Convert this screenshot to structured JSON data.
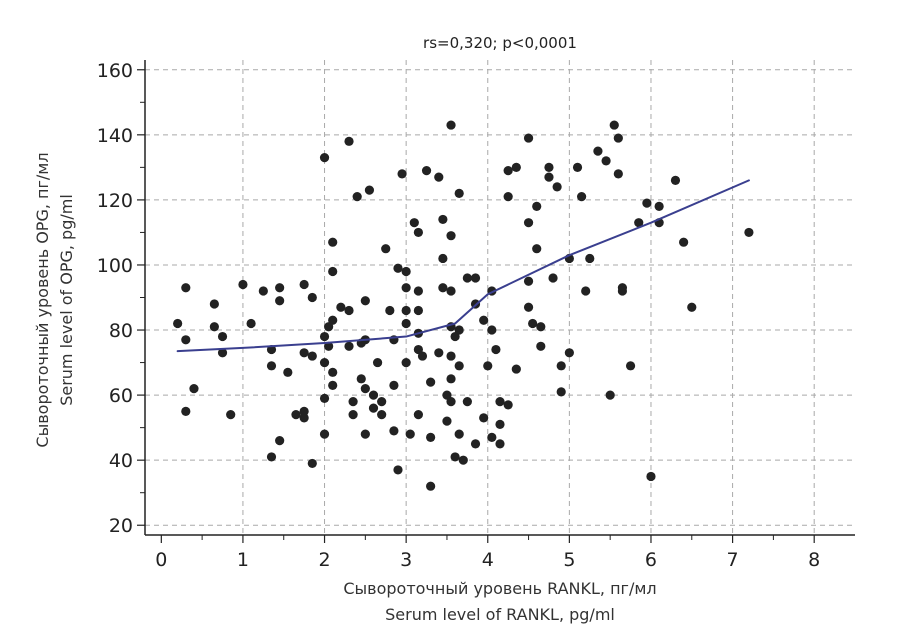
{
  "chart_data": {
    "type": "scatter",
    "title": "rs=0,320; p<0,0001",
    "xlabel_lines": [
      "Сывороточный уровень RANKL, пг/мл",
      "Serum level of RANKL, pg/ml"
    ],
    "ylabel_lines": [
      "Сывороточный уровень OPG, пг/мл",
      "Serum level of OPG, pg/ml"
    ],
    "xlim": [
      -0.2,
      8.5
    ],
    "ylim": [
      17,
      163
    ],
    "x_ticks": [
      0,
      1,
      2,
      3,
      4,
      5,
      6,
      7,
      8
    ],
    "y_ticks": [
      20,
      40,
      60,
      80,
      100,
      120,
      140,
      160
    ],
    "grid": true,
    "point_color": "#222222",
    "line_color": "#3a3f8f",
    "series": [
      {
        "kind": "points",
        "points": [
          [
            0.2,
            82
          ],
          [
            0.3,
            77
          ],
          [
            0.3,
            93
          ],
          [
            0.3,
            55
          ],
          [
            0.4,
            62
          ],
          [
            0.65,
            88
          ],
          [
            0.65,
            81
          ],
          [
            0.75,
            78
          ],
          [
            0.75,
            73
          ],
          [
            0.85,
            54
          ],
          [
            1.0,
            94
          ],
          [
            1.1,
            82
          ],
          [
            1.25,
            92
          ],
          [
            1.35,
            74
          ],
          [
            1.35,
            69
          ],
          [
            1.35,
            41
          ],
          [
            1.45,
            93
          ],
          [
            1.45,
            89
          ],
          [
            1.45,
            46
          ],
          [
            1.55,
            67
          ],
          [
            1.65,
            54
          ],
          [
            1.75,
            94
          ],
          [
            1.75,
            73
          ],
          [
            1.75,
            55
          ],
          [
            1.75,
            53
          ],
          [
            1.85,
            90
          ],
          [
            1.85,
            72
          ],
          [
            1.85,
            39
          ],
          [
            2.0,
            59
          ],
          [
            2.0,
            133
          ],
          [
            2.0,
            78
          ],
          [
            2.0,
            70
          ],
          [
            2.0,
            48
          ],
          [
            2.05,
            81
          ],
          [
            2.05,
            75
          ],
          [
            2.1,
            107
          ],
          [
            2.1,
            98
          ],
          [
            2.1,
            83
          ],
          [
            2.1,
            67
          ],
          [
            2.1,
            63
          ],
          [
            2.2,
            87
          ],
          [
            2.3,
            86
          ],
          [
            2.3,
            75
          ],
          [
            2.3,
            138
          ],
          [
            2.35,
            58
          ],
          [
            2.35,
            54
          ],
          [
            2.4,
            121
          ],
          [
            2.45,
            76
          ],
          [
            2.45,
            65
          ],
          [
            2.5,
            89
          ],
          [
            2.5,
            77
          ],
          [
            2.5,
            62
          ],
          [
            2.5,
            48
          ],
          [
            2.55,
            123
          ],
          [
            2.6,
            60
          ],
          [
            2.6,
            56
          ],
          [
            2.65,
            70
          ],
          [
            2.7,
            58
          ],
          [
            2.7,
            54
          ],
          [
            2.75,
            105
          ],
          [
            2.8,
            86
          ],
          [
            2.85,
            77
          ],
          [
            2.85,
            63
          ],
          [
            2.85,
            49
          ],
          [
            2.9,
            99
          ],
          [
            2.9,
            37
          ],
          [
            2.95,
            128
          ],
          [
            3.0,
            98
          ],
          [
            3.0,
            93
          ],
          [
            3.0,
            86
          ],
          [
            3.0,
            82
          ],
          [
            3.0,
            70
          ],
          [
            3.05,
            48
          ],
          [
            3.1,
            113
          ],
          [
            3.15,
            110
          ],
          [
            3.15,
            92
          ],
          [
            3.15,
            86
          ],
          [
            3.15,
            79
          ],
          [
            3.15,
            74
          ],
          [
            3.15,
            54
          ],
          [
            3.2,
            72
          ],
          [
            3.25,
            129
          ],
          [
            3.3,
            64
          ],
          [
            3.3,
            47
          ],
          [
            3.3,
            32
          ],
          [
            3.4,
            127
          ],
          [
            3.4,
            73
          ],
          [
            3.45,
            114
          ],
          [
            3.45,
            102
          ],
          [
            3.45,
            93
          ],
          [
            3.5,
            60
          ],
          [
            3.5,
            52
          ],
          [
            3.55,
            143
          ],
          [
            3.55,
            109
          ],
          [
            3.55,
            92
          ],
          [
            3.55,
            81
          ],
          [
            3.55,
            72
          ],
          [
            3.55,
            65
          ],
          [
            3.55,
            58
          ],
          [
            3.6,
            78
          ],
          [
            3.6,
            41
          ],
          [
            3.65,
            122
          ],
          [
            3.65,
            80
          ],
          [
            3.65,
            69
          ],
          [
            3.65,
            48
          ],
          [
            3.7,
            40
          ],
          [
            3.75,
            96
          ],
          [
            3.75,
            58
          ],
          [
            3.85,
            96
          ],
          [
            3.85,
            88
          ],
          [
            3.85,
            45
          ],
          [
            3.95,
            83
          ],
          [
            3.95,
            53
          ],
          [
            4.0,
            69
          ],
          [
            4.05,
            92
          ],
          [
            4.05,
            80
          ],
          [
            4.05,
            47
          ],
          [
            4.1,
            74
          ],
          [
            4.15,
            58
          ],
          [
            4.15,
            51
          ],
          [
            4.15,
            45
          ],
          [
            4.25,
            121
          ],
          [
            4.25,
            129
          ],
          [
            4.25,
            57
          ],
          [
            4.35,
            130
          ],
          [
            4.35,
            68
          ],
          [
            4.5,
            139
          ],
          [
            4.5,
            113
          ],
          [
            4.5,
            95
          ],
          [
            4.5,
            87
          ],
          [
            4.55,
            82
          ],
          [
            4.6,
            118
          ],
          [
            4.6,
            105
          ],
          [
            4.65,
            81
          ],
          [
            4.65,
            75
          ],
          [
            4.75,
            130
          ],
          [
            4.75,
            127
          ],
          [
            4.8,
            96
          ],
          [
            4.85,
            124
          ],
          [
            4.9,
            69
          ],
          [
            4.9,
            61
          ],
          [
            5.0,
            102
          ],
          [
            5.0,
            73
          ],
          [
            5.1,
            130
          ],
          [
            5.15,
            121
          ],
          [
            5.2,
            92
          ],
          [
            5.25,
            102
          ],
          [
            5.35,
            135
          ],
          [
            5.45,
            132
          ],
          [
            5.5,
            60
          ],
          [
            5.55,
            143
          ],
          [
            5.6,
            139
          ],
          [
            5.6,
            128
          ],
          [
            5.65,
            93
          ],
          [
            5.65,
            92
          ],
          [
            5.75,
            69
          ],
          [
            5.85,
            113
          ],
          [
            5.95,
            119
          ],
          [
            6.0,
            35
          ],
          [
            6.1,
            118
          ],
          [
            6.1,
            113
          ],
          [
            6.3,
            126
          ],
          [
            6.4,
            107
          ],
          [
            6.5,
            87
          ],
          [
            7.2,
            110
          ]
        ]
      },
      {
        "kind": "line",
        "points": [
          [
            0.2,
            73.5
          ],
          [
            1.0,
            74.5
          ],
          [
            2.0,
            76
          ],
          [
            3.0,
            78
          ],
          [
            3.6,
            82
          ],
          [
            4.0,
            91
          ],
          [
            5.0,
            103
          ],
          [
            6.0,
            113
          ],
          [
            7.2,
            126
          ]
        ]
      }
    ]
  }
}
